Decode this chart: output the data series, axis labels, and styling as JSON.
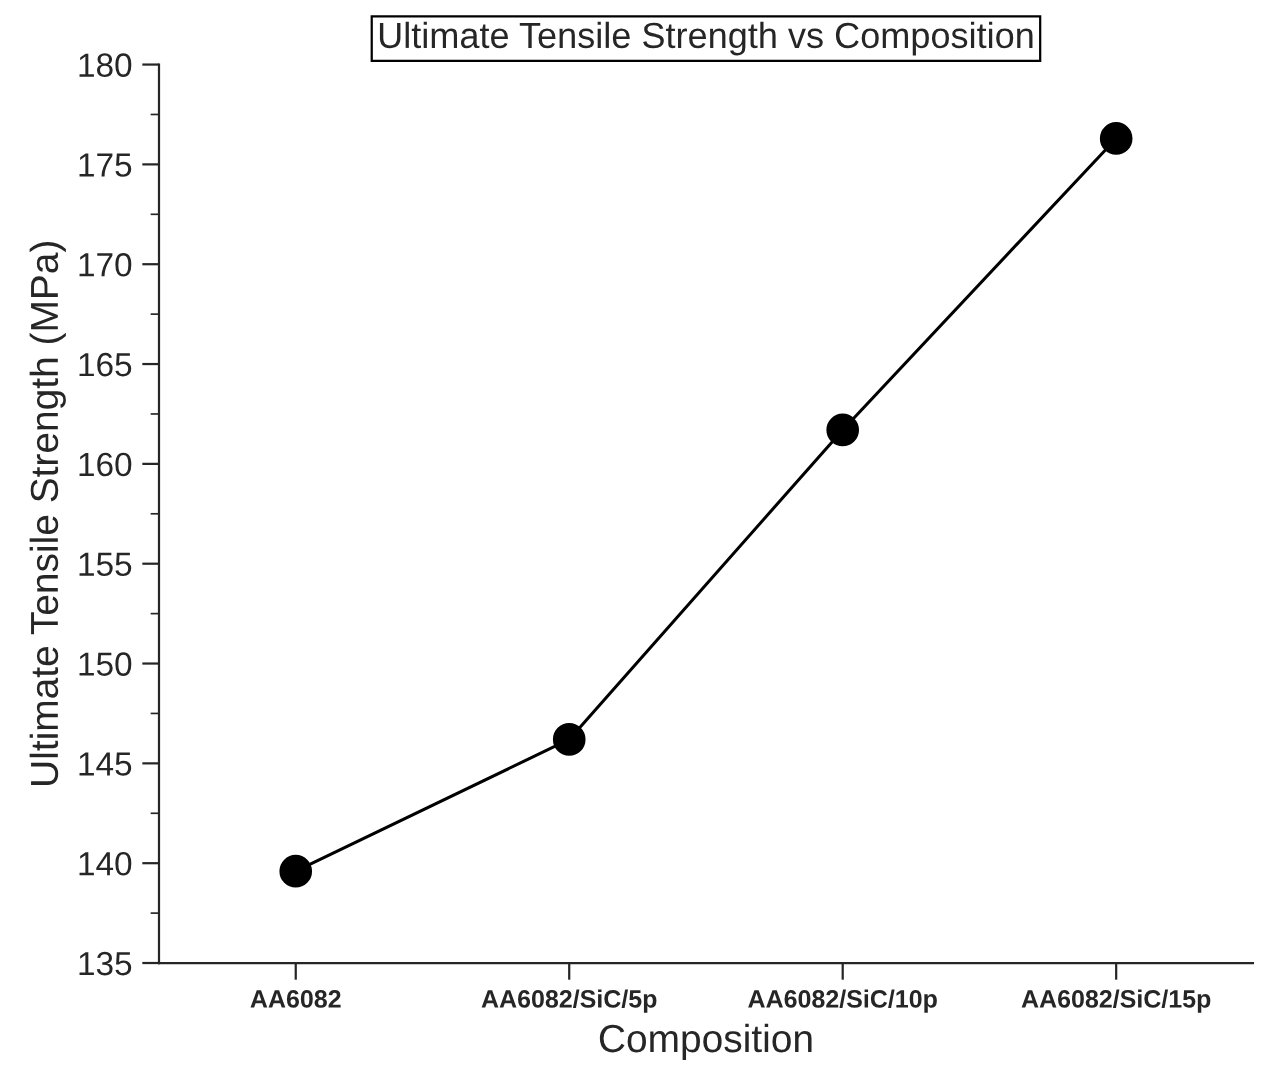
{
  "chart_data": {
    "type": "line",
    "title": "Ultimate Tensile Strength vs Composition",
    "xlabel": "Composition",
    "ylabel": "Ultimate Tensile Strength (MPa)",
    "categories": [
      "AA6082",
      "AA6082/SiC/5p",
      "AA6082/SiC/10p",
      "AA6082/SiC/15p"
    ],
    "series": [
      {
        "color": "#000000",
        "values": [
          139.6,
          146.2,
          161.7,
          176.3
        ]
      }
    ],
    "ylim": [
      135,
      180
    ],
    "yticks": [
      135,
      140,
      145,
      150,
      155,
      160,
      165,
      170,
      175,
      180
    ],
    "marker": "circle",
    "line_style": "solid",
    "grid": false
  }
}
